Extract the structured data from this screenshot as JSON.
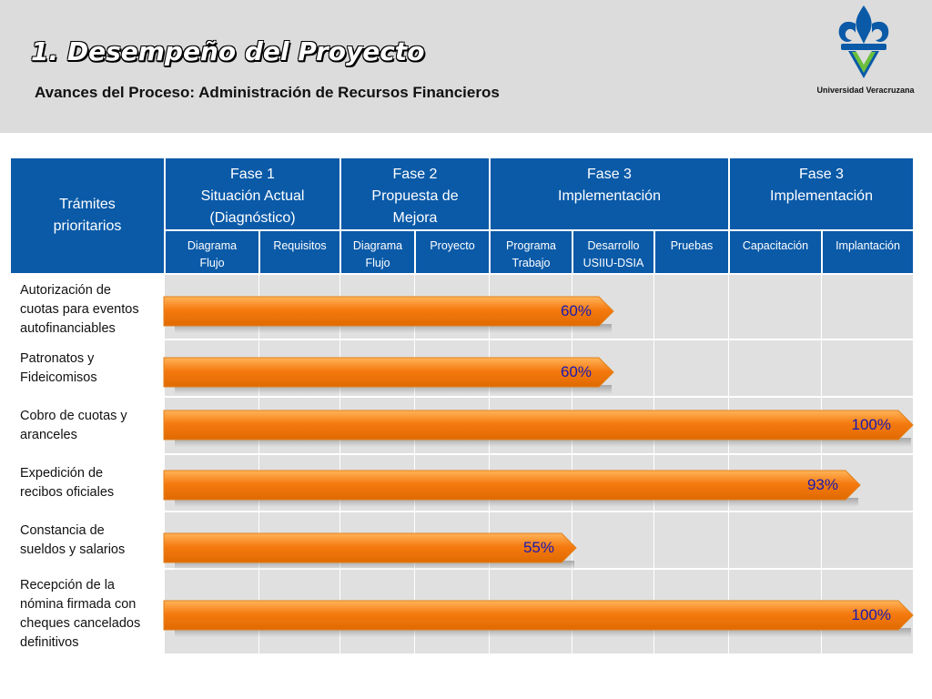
{
  "header": {
    "title": "1. Desempeño del Proyecto",
    "subtitle": "Avances del Proceso:  Administración de Recursos Financieros",
    "logo_text": "Universidad Veracruzana",
    "logo_icon": "fleur-de-lis-v-logo-icon"
  },
  "table": {
    "corner_label": "Trámites prioritarios",
    "phases": [
      {
        "lines": [
          "Fase 1",
          "Situación Actual",
          "(Diagnóstico)"
        ]
      },
      {
        "lines": [
          "Fase 2",
          "Propuesta de",
          "Mejora"
        ]
      },
      {
        "lines": [
          "Fase 3",
          "Implementación"
        ]
      },
      {
        "lines": [
          "Fase 3",
          "Implementación"
        ]
      }
    ],
    "subheaders": [
      {
        "lines": [
          "Diagrama",
          "Flujo"
        ]
      },
      {
        "lines": [
          "Requisitos"
        ]
      },
      {
        "lines": [
          "Diagrama",
          "Flujo"
        ]
      },
      {
        "lines": [
          "Proyecto"
        ]
      },
      {
        "lines": [
          "Programa",
          "Trabajo"
        ]
      },
      {
        "lines": [
          "Desarrollo",
          "USIIU-DSIA"
        ]
      },
      {
        "lines": [
          "Pruebas"
        ]
      },
      {
        "lines": [
          "Capacitación"
        ]
      },
      {
        "lines": [
          "Implantación"
        ]
      }
    ],
    "rows": [
      {
        "lines": [
          "Autorización de",
          "cuotas para eventos",
          "autofinanciables"
        ],
        "progress": 60,
        "progress_label": "60%"
      },
      {
        "lines": [
          "Patronatos y",
          "Fideicomisos"
        ],
        "progress": 60,
        "progress_label": "60%"
      },
      {
        "lines": [
          "Cobro de cuotas y",
          "aranceles"
        ],
        "progress": 100,
        "progress_label": "100%"
      },
      {
        "lines": [
          "Expedición de",
          "recibos oficiales"
        ],
        "progress": 93,
        "progress_label": "93%"
      },
      {
        "lines": [
          "Constancia de",
          "sueldos y salarios"
        ],
        "progress": 55,
        "progress_label": "55%"
      },
      {
        "lines": [
          "Recepción de la",
          "nómina firmada con",
          "cheques cancelados",
          "definitivos"
        ],
        "progress": 100,
        "progress_label": "100%"
      }
    ]
  },
  "colors": {
    "header_blue": "#0a5aa8",
    "bar_orange": "#f57a10",
    "bar_light": "#ffb45a",
    "percent_text": "#1a1ab0",
    "grid_gray": "#e0e0e0",
    "top_band": "#dcdcdc"
  }
}
